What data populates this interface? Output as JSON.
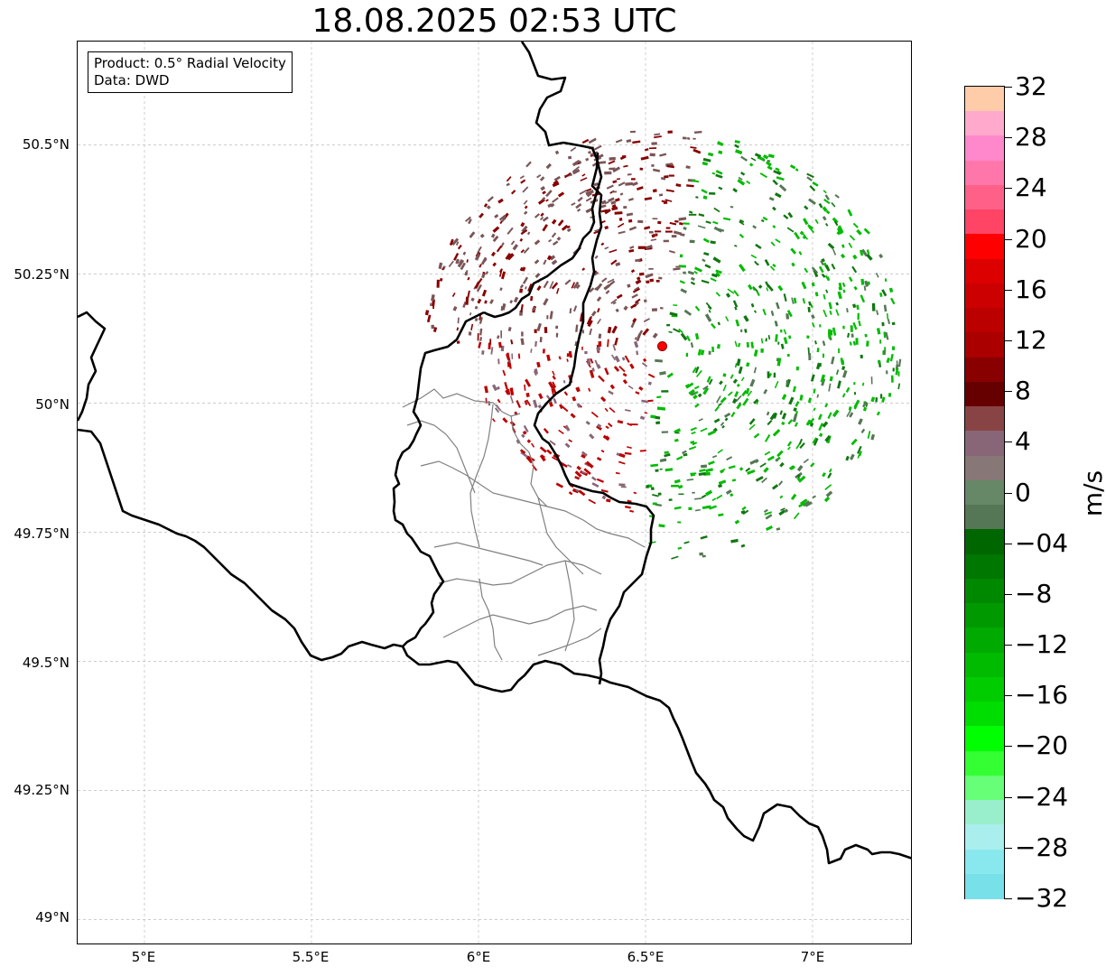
{
  "title": "18.08.2025 02:53 UTC",
  "info": {
    "product": "Product: 0.5° Radial Velocity",
    "data": "Data: DWD"
  },
  "axes": {
    "lat_labels": [
      "50.5°N",
      "50.25°N",
      "50°N",
      "49.75°N",
      "49.5°N",
      "49.25°N",
      "49°N"
    ],
    "lon_labels": [
      "5°E",
      "5.5°E",
      "6°E",
      "6.5°E",
      "7°E"
    ],
    "lat_values": [
      50.5,
      50.25,
      50.0,
      49.75,
      49.5,
      49.25,
      49.0
    ],
    "lon_values": [
      5.0,
      5.5,
      6.0,
      6.5,
      7.0
    ],
    "extent": {
      "lon_min": 4.8,
      "lon_max": 7.3,
      "lat_min": 48.95,
      "lat_max": 50.7
    }
  },
  "radar_site": {
    "lon": 6.55,
    "lat": 50.11,
    "color": "#ff0000"
  },
  "colorbar": {
    "unit": "m/s",
    "tick_labels": [
      "32",
      "28",
      "24",
      "20",
      "16",
      "12",
      "8",
      "4",
      "0",
      "−04",
      "−8",
      "−12",
      "−16",
      "−20",
      "−24",
      "−28",
      "−32"
    ],
    "tick_values": [
      32,
      28,
      24,
      20,
      16,
      12,
      8,
      4,
      0,
      -4,
      -8,
      -12,
      -16,
      -20,
      -24,
      -28,
      -32
    ],
    "colors_top_to_bottom": [
      "#ffccaa",
      "#ffaacc",
      "#ff88cc",
      "#ff77aa",
      "#ff6088",
      "#ff4466",
      "#ff0000",
      "#dd0000",
      "#cc0000",
      "#bb0000",
      "#aa0000",
      "#880000",
      "#660000",
      "#884444",
      "#886677",
      "#887777",
      "#668866",
      "#557755",
      "#006600",
      "#007700",
      "#008800",
      "#009900",
      "#00aa00",
      "#00bb00",
      "#00cc00",
      "#00dd00",
      "#00ff00",
      "#33ff33",
      "#66ff77",
      "#99eecc",
      "#aaeeee",
      "#88e8ee",
      "#77e0e8"
    ]
  },
  "colors": {
    "outbound_dark": "#7a5558",
    "outbound_red": "#bb0000",
    "inbound_green": "#00bb00",
    "inbound_dark": "#117711",
    "border": "#000000",
    "admin_border": "#808080",
    "grid": "#bbbbbb"
  }
}
